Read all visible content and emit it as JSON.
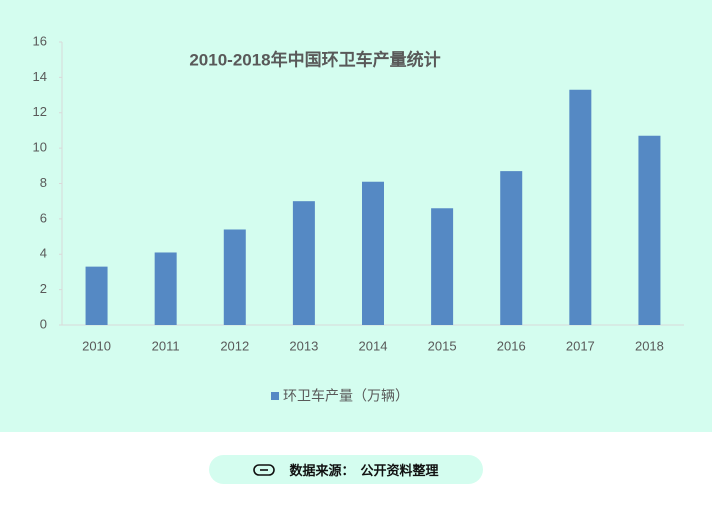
{
  "chart_data": {
    "type": "bar",
    "title": "2010-2018年中国环卫车产量统计",
    "categories": [
      "2010",
      "2011",
      "2012",
      "2013",
      "2014",
      "2015",
      "2016",
      "2017",
      "2018"
    ],
    "series": [
      {
        "name": "环卫车产量（万辆）",
        "color": "#5589c4",
        "values": [
          3.3,
          4.1,
          5.4,
          7.0,
          8.1,
          6.6,
          8.7,
          13.3,
          10.7
        ]
      }
    ],
    "ylim": [
      0,
      16
    ],
    "yticks": [
      0,
      2,
      4,
      6,
      8,
      10,
      12,
      14,
      16
    ],
    "grid": false,
    "legend": "bottom"
  },
  "footer": {
    "label": "数据来源：",
    "text": "公开资料整理"
  }
}
